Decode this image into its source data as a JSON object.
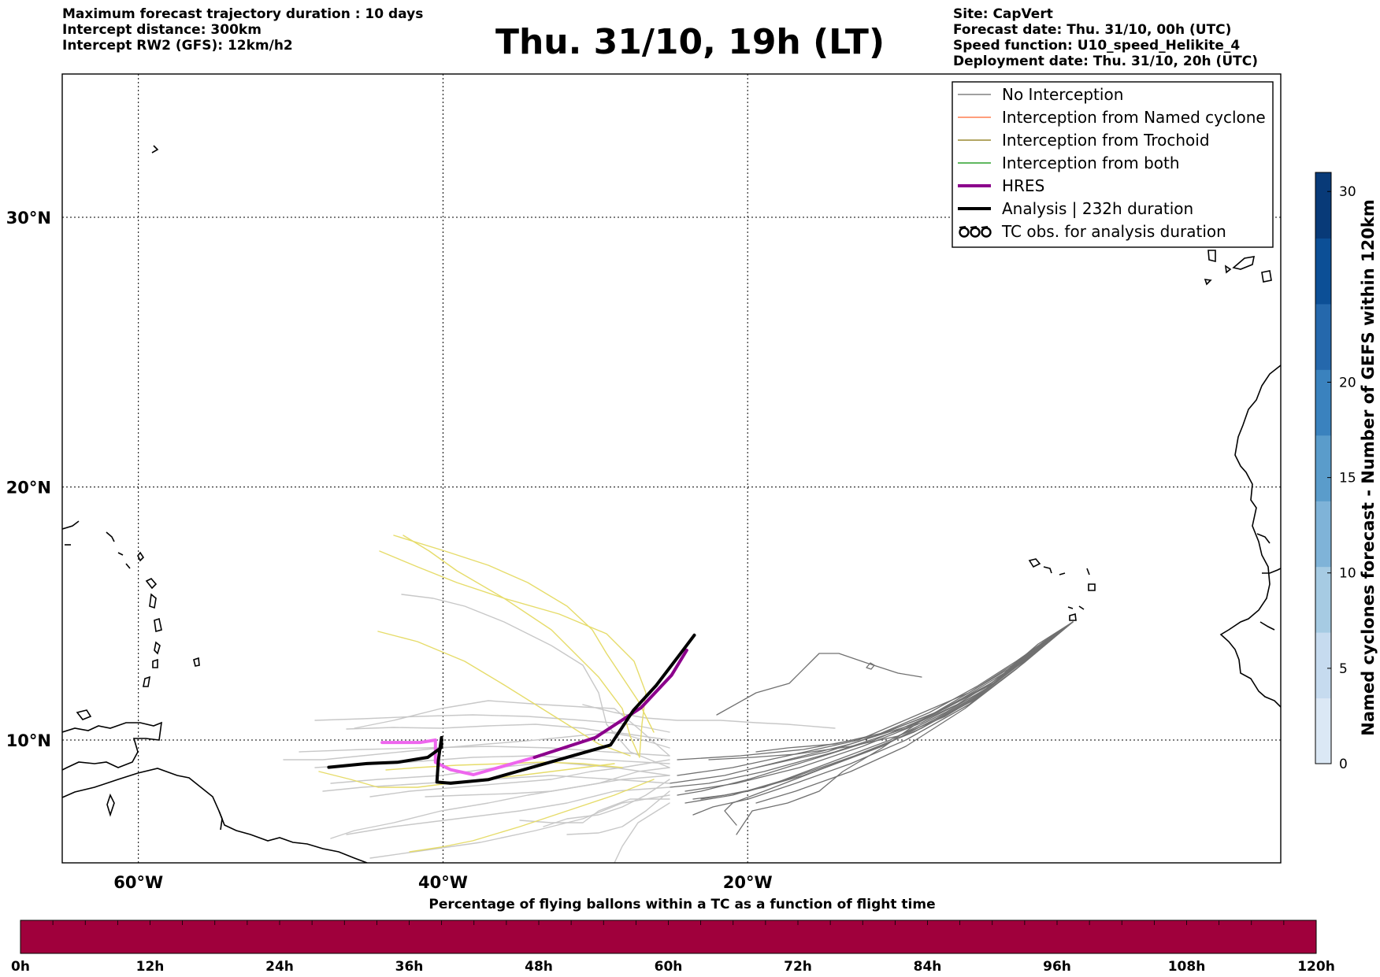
{
  "header": {
    "left": [
      "Maximum forecast trajectory duration : 10 days",
      "Intercept distance: 300km",
      "Intercept RW2 (GFS):  12km/h2"
    ],
    "title": "Thu. 31/10, 19h (LT)",
    "right": [
      "Site: CapVert",
      "Forecast date: Thu. 31/10, 00h (UTC)",
      "Speed function: U10_speed_Helikite_4",
      "Deployment date: Thu. 31/10, 20h (UTC)"
    ]
  },
  "map": {
    "lon_range": [
      -65,
      15
    ],
    "lat_range": [
      5,
      35
    ],
    "lon_ticks": [
      {
        "value": -60,
        "label": "60°W"
      },
      {
        "value": -40,
        "label": "40°W"
      },
      {
        "value": -20,
        "label": "20°W"
      }
    ],
    "lat_ticks": [
      {
        "value": 10,
        "label": "10°N"
      },
      {
        "value": 20,
        "label": "20°N"
      },
      {
        "value": 30,
        "label": "30°N"
      }
    ],
    "grid": true
  },
  "legend": {
    "placement": "top-right",
    "items": [
      {
        "label": "No Interception",
        "color": "#808080",
        "style": "line-thin"
      },
      {
        "label": "Interception from Named cyclone",
        "color": "#ff7f50",
        "style": "line-thin"
      },
      {
        "label": "Interception from Trochoid",
        "color": "#9a8a30",
        "style": "line-thin"
      },
      {
        "label": "Interception from both",
        "color": "#2ca02c",
        "style": "line-thin"
      },
      {
        "label": "HRES",
        "color": "#8b008b",
        "style": "line-thick"
      },
      {
        "label": "Analysis | 232h duration",
        "color": "#000000",
        "style": "line-thick"
      },
      {
        "label": "TC obs. for analysis duration",
        "color": "#000000",
        "style": "tc-symbol-icon"
      }
    ]
  },
  "right_colorbar": {
    "label": "Named cyclones forecast - Number of GEFS within 120km",
    "ticks": [
      0,
      5,
      10,
      15,
      20,
      30
    ],
    "range": [
      0,
      31
    ],
    "colors": [
      "#dbe8f5",
      "#c6dbef",
      "#a6cbe3",
      "#7fb3d8",
      "#5a9ccb",
      "#3a82be",
      "#2568ac",
      "#0c4f96",
      "#083a78"
    ]
  },
  "bottom_colorbar": {
    "title": "Percentage of flying ballons within a TC as a function of flight time",
    "color": "#a0003c",
    "ticks": [
      "0h",
      "12h",
      "24h",
      "36h",
      "48h",
      "60h",
      "72h",
      "84h",
      "96h",
      "108h",
      "120h"
    ]
  },
  "trajectories": {
    "analysis": [
      [
        -47.5,
        8.9
      ],
      [
        -45,
        9.05
      ],
      [
        -43,
        9.1
      ],
      [
        -41,
        9.3
      ],
      [
        -40.1,
        9.7
      ],
      [
        -40.1,
        10.1
      ],
      [
        -40.3,
        9.2
      ],
      [
        -40.4,
        8.3
      ],
      [
        -39.5,
        8.25
      ],
      [
        -37,
        8.4
      ],
      [
        -33,
        9.1
      ],
      [
        -29,
        9.8
      ],
      [
        -27.5,
        11.2
      ],
      [
        -26,
        12.2
      ],
      [
        -24.5,
        13.4
      ],
      [
        -23.5,
        14.2
      ]
    ],
    "hres": [
      [
        -44,
        9.9
      ],
      [
        -41.5,
        9.9
      ],
      [
        -40.5,
        10.0
      ],
      [
        -40.5,
        9.1
      ],
      [
        -39.5,
        8.8
      ],
      [
        -38,
        8.6
      ],
      [
        -34,
        9.3
      ],
      [
        -30,
        10.1
      ],
      [
        -27,
        11.3
      ],
      [
        -25,
        12.6
      ],
      [
        -24,
        13.6
      ]
    ]
  }
}
